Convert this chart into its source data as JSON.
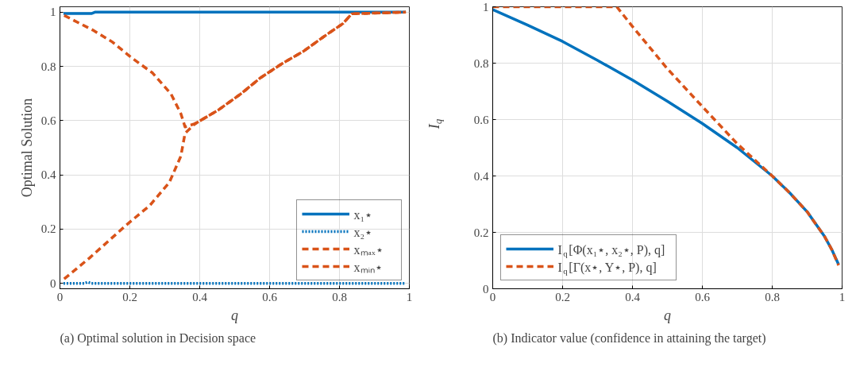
{
  "chart_data": [
    {
      "type": "line",
      "title": "(a) Optimal solution in Decision space",
      "xlabel": "q",
      "ylabel": "Optimal Solution",
      "xlim": [
        0,
        1
      ],
      "ylim": [
        -0.02,
        1.02
      ],
      "xticks": [
        0,
        0.2,
        0.4,
        0.6,
        0.8,
        1
      ],
      "yticks": [
        0,
        0.2,
        0.4,
        0.6,
        0.8,
        1
      ],
      "grid": true,
      "legend": "bottom right",
      "series": [
        {
          "name": "x₁⋆",
          "color": "#0072bd",
          "line_style": "solid",
          "x": [
            0.01,
            0.09,
            0.1,
            0.5,
            0.99
          ],
          "values": [
            0.995,
            0.995,
            1.0,
            1.0,
            1.0
          ]
        },
        {
          "name": "x₂⋆",
          "color": "#0072bd",
          "line_style": "dotted",
          "x": [
            0.01,
            0.07,
            0.08,
            0.09,
            0.1,
            0.99
          ],
          "values": [
            0.0,
            0.0,
            0.005,
            0.0,
            0.0,
            0.0
          ]
        },
        {
          "name": "xₘₐₓ⋆",
          "color": "#d95319",
          "line_style": "dashed",
          "x": [
            0.012,
            0.094,
            0.15,
            0.207,
            0.265,
            0.318,
            0.346,
            0.358,
            0.387,
            0.452,
            0.517,
            0.574,
            0.639,
            0.696,
            0.761,
            0.81,
            0.835,
            0.99
          ],
          "values": [
            0.988,
            0.934,
            0.89,
            0.83,
            0.776,
            0.698,
            0.626,
            0.577,
            0.589,
            0.638,
            0.698,
            0.758,
            0.813,
            0.855,
            0.915,
            0.958,
            0.994,
            1.0
          ]
        },
        {
          "name": "xₘᵢₙ⋆",
          "color": "#d95319",
          "line_style": "dashed",
          "x": [
            0.012,
            0.085,
            0.19,
            0.257,
            0.313,
            0.346,
            0.358,
            0.387,
            0.452,
            0.517,
            0.574,
            0.639,
            0.696,
            0.761,
            0.81,
            0.835,
            0.99
          ],
          "values": [
            0.016,
            0.094,
            0.215,
            0.287,
            0.372,
            0.469,
            0.553,
            0.589,
            0.638,
            0.698,
            0.758,
            0.813,
            0.855,
            0.915,
            0.958,
            0.994,
            1.0
          ]
        }
      ]
    },
    {
      "type": "line",
      "title": "(b) Indicator value (confidence in attaining the target)",
      "xlabel": "q",
      "ylabel": "I$_{q}$",
      "xlim": [
        0,
        1
      ],
      "ylim": [
        0,
        1
      ],
      "xticks": [
        0,
        0.2,
        0.4,
        0.6,
        0.8,
        1
      ],
      "yticks": [
        0,
        0.2,
        0.4,
        0.6,
        0.8,
        1
      ],
      "grid": true,
      "legend": "bottom left",
      "series": [
        {
          "name": "I$_{q}$[Φ(x₁⋆, x₂⋆, P), q]",
          "color": "#0072bd",
          "line_style": "solid",
          "x": [
            0.0,
            0.1,
            0.2,
            0.3,
            0.4,
            0.5,
            0.6,
            0.7,
            0.8,
            0.85,
            0.9,
            0.95,
            0.97,
            0.99
          ],
          "values": [
            0.99,
            0.935,
            0.877,
            0.81,
            0.74,
            0.665,
            0.586,
            0.5,
            0.4,
            0.34,
            0.273,
            0.185,
            0.14,
            0.086
          ]
        },
        {
          "name": "I$_{q}$[Γ(x⋆, Y⋆, P), q]",
          "color": "#d95319",
          "line_style": "dashed",
          "x": [
            0.0,
            0.355,
            0.4,
            0.5,
            0.6,
            0.7,
            0.8,
            0.85,
            0.9,
            0.95,
            0.97,
            0.99
          ],
          "values": [
            1.0,
            1.0,
            0.93,
            0.78,
            0.646,
            0.514,
            0.4,
            0.34,
            0.273,
            0.185,
            0.14,
            0.083
          ]
        }
      ]
    }
  ]
}
